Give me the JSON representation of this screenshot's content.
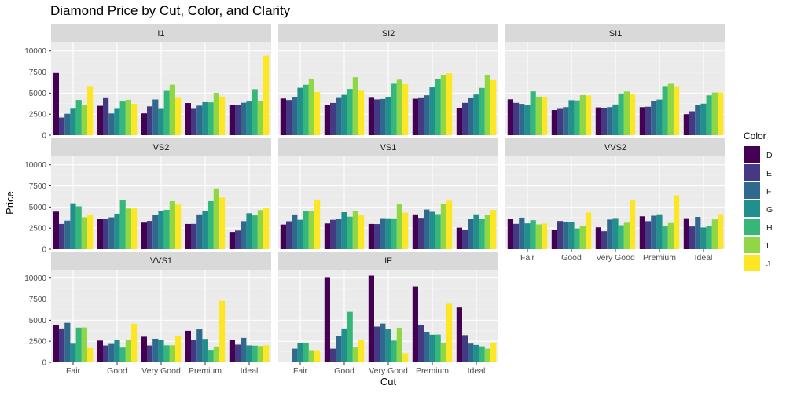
{
  "chart_data": {
    "type": "bar",
    "title": "Diamond Price by Cut, Color, and Clarity",
    "xlabel": "Cut",
    "ylabel": "Price",
    "legend_title": "Color",
    "legend_position": "right",
    "grid": true,
    "ylim": [
      0,
      11000
    ],
    "yticks": [
      0,
      2500,
      5000,
      7500,
      10000
    ],
    "categories": [
      "Fair",
      "Good",
      "Very Good",
      "Premium",
      "Ideal"
    ],
    "colors": [
      "D",
      "E",
      "F",
      "G",
      "H",
      "I",
      "J"
    ],
    "color_hex": [
      "#440154",
      "#443A83",
      "#31688E",
      "#21908C",
      "#35B779",
      "#8FD744",
      "#FDE725"
    ],
    "facets": [
      {
        "name": "I1",
        "values": [
          [
            7383,
            2095,
            2544,
            3145,
            4185,
            3560,
            5745
          ],
          [
            3490,
            4398,
            2580,
            3130,
            4000,
            4200,
            3730
          ],
          [
            2590,
            3420,
            4240,
            3120,
            5260,
            6000,
            4420
          ],
          [
            3820,
            3130,
            3510,
            3920,
            3900,
            5030,
            4590
          ],
          [
            3560,
            3550,
            3850,
            4000,
            5460,
            4080,
            9450
          ]
        ]
      },
      {
        "name": "SI2",
        "values": [
          [
            4355,
            4180,
            4480,
            5630,
            5990,
            6620,
            5130
          ],
          [
            3600,
            3830,
            4420,
            4790,
            5490,
            6880,
            5280
          ],
          [
            4440,
            4250,
            4300,
            4500,
            6110,
            6590,
            6060
          ],
          [
            4330,
            4400,
            4740,
            5680,
            6700,
            7120,
            7350
          ],
          [
            3200,
            3840,
            4390,
            4830,
            5610,
            7140,
            6540
          ]
        ]
      },
      {
        "name": "SI1",
        "values": [
          [
            4260,
            3840,
            3720,
            3600,
            5200,
            4580,
            4550
          ],
          [
            2980,
            3120,
            3330,
            4160,
            4130,
            4750,
            4710
          ],
          [
            3300,
            3260,
            3330,
            3650,
            4960,
            5190,
            4930
          ],
          [
            3330,
            3380,
            4090,
            4230,
            5740,
            6110,
            5730
          ],
          [
            2500,
            2840,
            3630,
            3750,
            4730,
            5070,
            5060
          ]
        ]
      },
      {
        "name": "VS2",
        "values": [
          [
            4450,
            2990,
            3380,
            5440,
            5080,
            3780,
            4030
          ],
          [
            3570,
            3600,
            3770,
            4200,
            5860,
            4820,
            4830
          ],
          [
            3150,
            3350,
            4100,
            4490,
            4660,
            5690,
            5290
          ],
          [
            2990,
            3000,
            4120,
            4550,
            5690,
            7200,
            6120
          ],
          [
            2040,
            2210,
            3320,
            4260,
            4000,
            4640,
            4840
          ]
        ]
      },
      {
        "name": "VS1",
        "values": [
          [
            2920,
            3310,
            4110,
            3480,
            4530,
            4550,
            5890
          ],
          [
            3050,
            3480,
            3550,
            4380,
            3850,
            4540,
            4030
          ],
          [
            2990,
            2980,
            3680,
            3660,
            3650,
            5310,
            4320
          ],
          [
            4120,
            3720,
            4700,
            4430,
            4150,
            5320,
            5740
          ],
          [
            2550,
            2240,
            3560,
            4130,
            3560,
            4020,
            4640
          ]
        ]
      },
      {
        "name": "VVS2",
        "values": [
          [
            3600,
            3000,
            3740,
            3060,
            3430,
            2940,
            3040
          ],
          [
            2260,
            3340,
            3190,
            3210,
            2470,
            2750,
            4350
          ],
          [
            2590,
            2130,
            3510,
            3690,
            2840,
            3140,
            5820
          ],
          [
            3890,
            3320,
            3960,
            4130,
            2700,
            3100,
            6380
          ],
          [
            3670,
            2690,
            3820,
            2570,
            2740,
            3520,
            4150
          ]
        ]
      },
      {
        "name": "VVS1",
        "values": [
          [
            4470,
            4020,
            4690,
            2210,
            4120,
            4140,
            1690
          ],
          [
            2580,
            2000,
            2180,
            2690,
            1750,
            2630,
            4580
          ],
          [
            3040,
            2000,
            2800,
            2640,
            2020,
            2020,
            3110
          ],
          [
            3740,
            2700,
            3910,
            2780,
            1480,
            1880,
            7290
          ],
          [
            2700,
            2100,
            2900,
            2010,
            1980,
            1930,
            2030
          ]
        ]
      },
      {
        "name": "IF",
        "values": [
          [
            null,
            null,
            1620,
            2320,
            2320,
            1440,
            1440
          ],
          [
            10030,
            1620,
            3130,
            4020,
            6000,
            1760,
            2670
          ],
          [
            10300,
            4240,
            4600,
            3990,
            2580,
            4110,
            1070
          ],
          [
            8990,
            4390,
            3560,
            3280,
            3300,
            2300,
            6950
          ],
          [
            6510,
            3230,
            2220,
            2060,
            1900,
            1620,
            2350
          ]
        ]
      }
    ]
  }
}
